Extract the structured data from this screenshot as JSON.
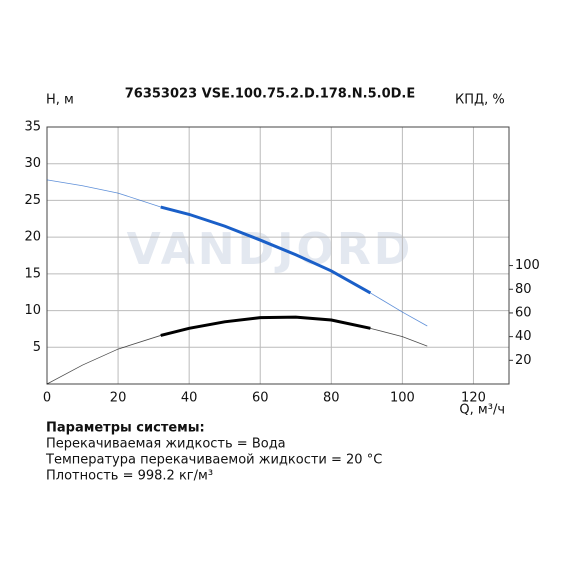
{
  "chart_data": {
    "type": "line",
    "title": "76353023 VSE.100.75.2.D.178.N.5.0D.E",
    "watermark": "VANDJORD",
    "y_label": "H, м",
    "y2_label": "КПД, %",
    "x_label": "Q, м³/ч",
    "x": [
      0,
      10,
      20,
      32,
      40,
      50,
      60,
      70,
      80,
      91,
      100,
      107
    ],
    "operating_range": [
      32,
      91
    ],
    "series": [
      {
        "color": "#1a5fc8",
        "values": [
          27.8,
          27.0,
          26.0,
          24.1,
          23.1,
          21.5,
          19.6,
          17.6,
          15.4,
          12.4,
          9.8,
          7.9
        ]
      },
      {
        "color": "#000000",
        "axis": "y2",
        "values": [
          0,
          16,
          29.5,
          41,
          47,
          52.5,
          56,
          56.5,
          54,
          47,
          40,
          32
        ]
      }
    ],
    "xlim": [
      0,
      130
    ],
    "xticks": [
      0,
      20,
      40,
      60,
      80,
      100,
      120
    ],
    "ylim": [
      0,
      35
    ],
    "yticks": [
      5,
      10,
      15,
      20,
      25,
      30,
      35
    ],
    "y2lim": [
      0,
      217
    ],
    "y2ticks": [
      20,
      40,
      60,
      80,
      100
    ],
    "grid": true
  },
  "notes": {
    "heading": "Параметры системы:",
    "lines": [
      "Перекачиваемая жидкость = Вода",
      "Температура перекачиваемой жидкости = 20 °C",
      "Плотность = 998.2 кг/м³"
    ]
  }
}
